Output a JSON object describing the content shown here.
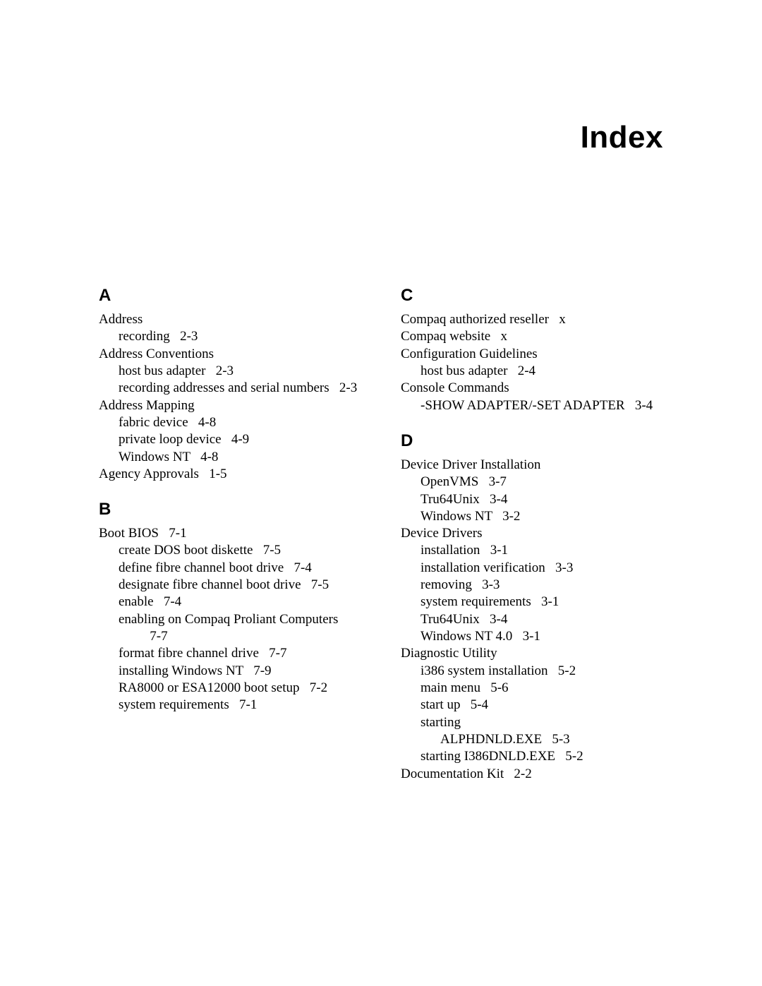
{
  "title": "Index",
  "left": [
    {
      "type": "letter",
      "text": "A"
    },
    {
      "type": "entry",
      "level": 0,
      "text": "Address"
    },
    {
      "type": "entry",
      "level": 1,
      "text": "recording",
      "page": "2-3"
    },
    {
      "type": "entry",
      "level": 0,
      "text": "Address Conventions"
    },
    {
      "type": "entry",
      "level": 1,
      "text": "host bus adapter",
      "page": "2-3"
    },
    {
      "type": "entry",
      "level": 1,
      "text": "recording addresses and serial numbers",
      "page": "2-3"
    },
    {
      "type": "entry",
      "level": 0,
      "text": "Address Mapping"
    },
    {
      "type": "entry",
      "level": 1,
      "text": "fabric device",
      "page": "4-8"
    },
    {
      "type": "entry",
      "level": 1,
      "text": "private loop device",
      "page": "4-9"
    },
    {
      "type": "entry",
      "level": 1,
      "text": "Windows NT",
      "page": "4-8"
    },
    {
      "type": "entry",
      "level": 0,
      "text": "Agency Approvals",
      "page": "1-5"
    },
    {
      "type": "letter",
      "text": "B",
      "spaced": true
    },
    {
      "type": "entry",
      "level": 0,
      "text": "Boot BIOS",
      "page": "7-1"
    },
    {
      "type": "entry",
      "level": 1,
      "text": "create DOS boot diskette",
      "page": "7-5"
    },
    {
      "type": "entry",
      "level": 1,
      "text": "define fibre channel boot drive",
      "page": "7-4"
    },
    {
      "type": "entry",
      "level": 1,
      "text": "designate fibre channel boot drive",
      "page": "7-5"
    },
    {
      "type": "entry",
      "level": 1,
      "text": "enable",
      "page": "7-4"
    },
    {
      "type": "entry",
      "level": 1,
      "text": "enabling on Compaq Proliant Computers",
      "page": "7-7"
    },
    {
      "type": "entry",
      "level": 1,
      "text": "format fibre channel drive",
      "page": "7-7"
    },
    {
      "type": "entry",
      "level": 1,
      "text": "installing Windows NT",
      "page": "7-9"
    },
    {
      "type": "entry",
      "level": 1,
      "text": "RA8000 or ESA12000 boot setup",
      "page": "7-2"
    },
    {
      "type": "entry",
      "level": 1,
      "text": "system requirements",
      "page": "7-1"
    }
  ],
  "right": [
    {
      "type": "letter",
      "text": "C"
    },
    {
      "type": "entry",
      "level": 0,
      "text": "Compaq authorized reseller",
      "page": "x"
    },
    {
      "type": "entry",
      "level": 0,
      "text": "Compaq website",
      "page": "x"
    },
    {
      "type": "entry",
      "level": 0,
      "text": "Configuration Guidelines"
    },
    {
      "type": "entry",
      "level": 1,
      "text": "host bus adapter",
      "page": "2-4"
    },
    {
      "type": "entry",
      "level": 0,
      "text": "Console Commands"
    },
    {
      "type": "entry",
      "level": 1,
      "text": "-SHOW ADAPTER/-SET ADAPTER",
      "page": "3-4"
    },
    {
      "type": "letter",
      "text": "D",
      "spaced": true
    },
    {
      "type": "entry",
      "level": 0,
      "text": "Device Driver Installation"
    },
    {
      "type": "entry",
      "level": 1,
      "text": "OpenVMS",
      "page": "3-7"
    },
    {
      "type": "entry",
      "level": 1,
      "text": "Tru64Unix",
      "page": "3-4"
    },
    {
      "type": "entry",
      "level": 1,
      "text": "Windows NT",
      "page": "3-2"
    },
    {
      "type": "entry",
      "level": 0,
      "text": "Device Drivers"
    },
    {
      "type": "entry",
      "level": 1,
      "text": "installation",
      "page": "3-1"
    },
    {
      "type": "entry",
      "level": 1,
      "text": "installation verification",
      "page": "3-3"
    },
    {
      "type": "entry",
      "level": 1,
      "text": "removing",
      "page": "3-3"
    },
    {
      "type": "entry",
      "level": 1,
      "text": "system requirements",
      "page": "3-1"
    },
    {
      "type": "entry",
      "level": 1,
      "text": "Tru64Unix",
      "page": "3-4"
    },
    {
      "type": "entry",
      "level": 1,
      "text": "Windows NT 4.0",
      "page": "3-1"
    },
    {
      "type": "entry",
      "level": 0,
      "text": "Diagnostic Utility"
    },
    {
      "type": "entry",
      "level": 1,
      "text": "i386 system installation",
      "page": "5-2"
    },
    {
      "type": "entry",
      "level": 1,
      "text": "main menu",
      "page": "5-6"
    },
    {
      "type": "entry",
      "level": 1,
      "text": "start up",
      "page": "5-4"
    },
    {
      "type": "entry",
      "level": 1,
      "text": "starting"
    },
    {
      "type": "entry",
      "level": 2,
      "text": "ALPHDNLD.EXE",
      "page": "5-3"
    },
    {
      "type": "entry",
      "level": 1,
      "text": "starting I386DNLD.EXE",
      "page": "5-2"
    },
    {
      "type": "entry",
      "level": 0,
      "text": "Documentation Kit",
      "page": "2-2"
    }
  ]
}
